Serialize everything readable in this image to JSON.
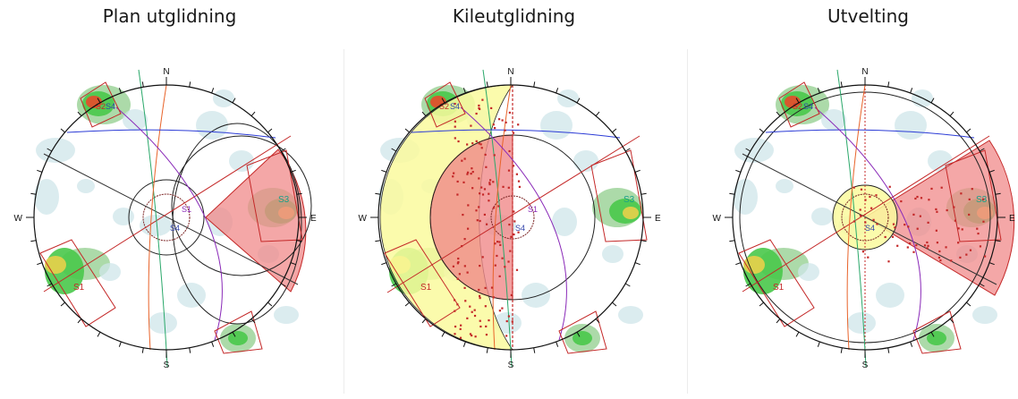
{
  "colors": {
    "contour_low": "#cfe6ea",
    "contour_mid": "#a3d6a0",
    "contour_high": "#49c84a",
    "contour_peak": "#e8d04a",
    "contour_hot": "#e84a2a",
    "failure_zone": "#f08a8a",
    "friction_zone": "#fafa9e",
    "great_circle_blue": "#2b3bd6",
    "great_circle_orange": "#e8632a",
    "great_circle_green": "#2aa86a",
    "great_circle_purple": "#8a2ab8",
    "window_red": "#c42828",
    "set_label": "#c42828",
    "s3_label": "#1aa08a",
    "s4_label": "#3344aa"
  },
  "compass": {
    "north": "N",
    "south": "S",
    "east": "E",
    "west": "W"
  },
  "set_labels": {
    "s1": "S1",
    "s2": "S2",
    "s3": "S3",
    "s4": "S4"
  },
  "panels": [
    {
      "id": "planar",
      "title": "Plan utglidning"
    },
    {
      "id": "wedge",
      "title": "Kileutglidning"
    },
    {
      "id": "toppling",
      "title": "Utvelting"
    }
  ]
}
